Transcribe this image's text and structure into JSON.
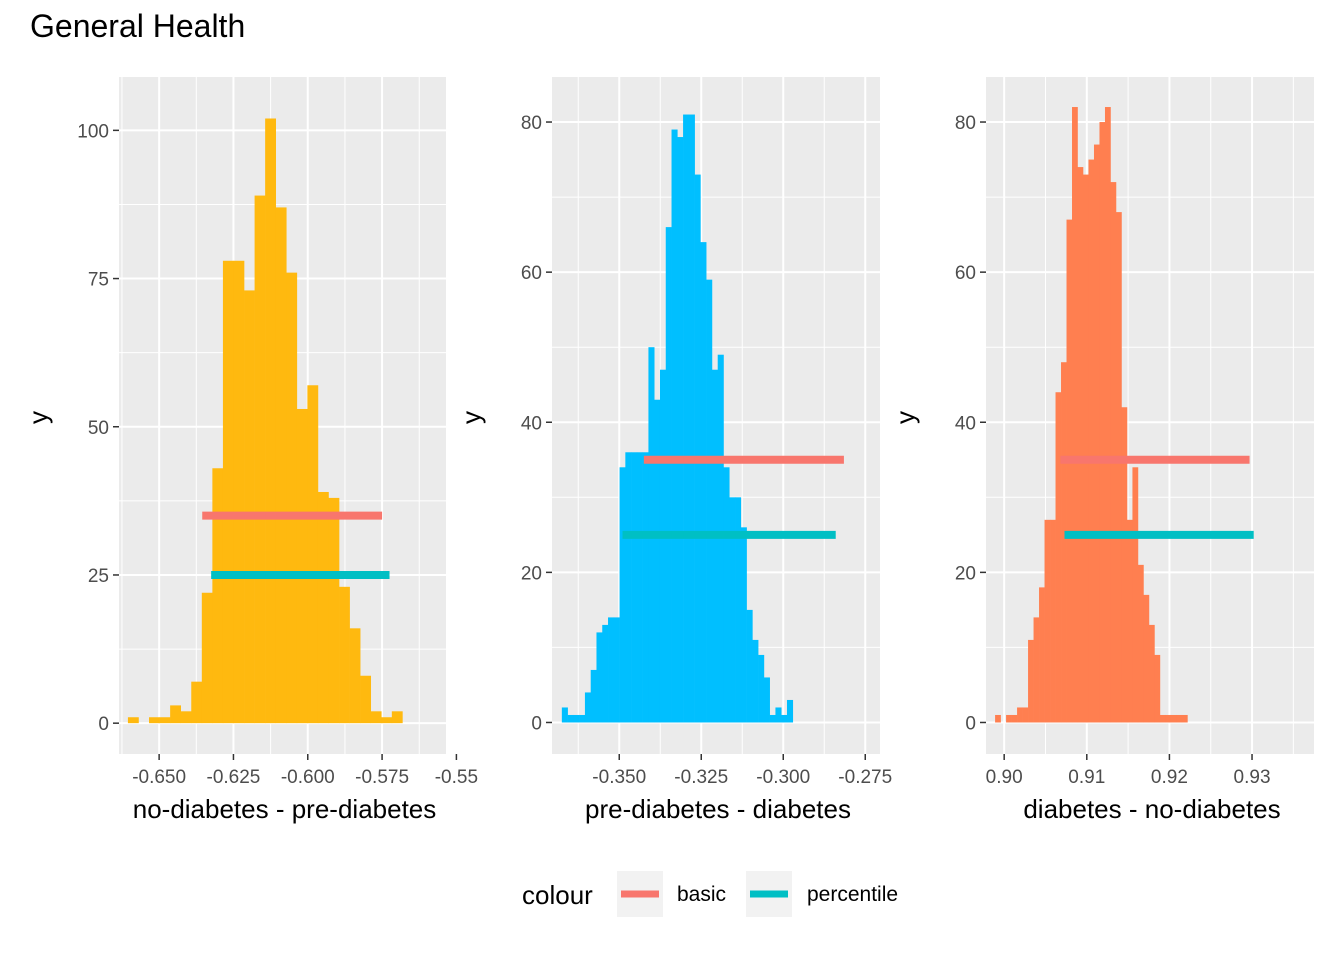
{
  "title": "General Health",
  "colors": {
    "basic": "#F8766D",
    "percentile": "#00BFC4"
  },
  "legend": {
    "title": "colour",
    "items": [
      {
        "key": "basic",
        "label": "basic",
        "color": "#F8766D"
      },
      {
        "key": "percentile",
        "label": "percentile",
        "color": "#00BFC4"
      }
    ]
  },
  "chart_data": [
    {
      "type": "bar",
      "subtype": "histogram",
      "xlabel": "no-diabetes - pre-diabetes",
      "ylabel": "y",
      "fill": "#FFB90F",
      "xlim": [
        -0.6635,
        -0.5535
      ],
      "ylim": [
        -5.2,
        109
      ],
      "xticks": [
        -0.65,
        -0.625,
        -0.6,
        -0.575,
        -0.55
      ],
      "xtick_labels": [
        "-0.650",
        "-0.625",
        "-0.600",
        "-0.575",
        "-0.55"
      ],
      "yticks": [
        0,
        25,
        50,
        75,
        100
      ],
      "ytick_labels": [
        "0",
        "25",
        "50",
        "75",
        "100"
      ],
      "bin_start": -0.6605,
      "bin_width": 0.003551,
      "counts": [
        1,
        0,
        1,
        1,
        3,
        2,
        7,
        22,
        43,
        78,
        78,
        73,
        89,
        102,
        87,
        76,
        53,
        57,
        39,
        38,
        23,
        16,
        8,
        2,
        1,
        2
      ],
      "intervals": [
        {
          "key": "basic",
          "lower": -0.6355,
          "upper": -0.575,
          "y": 35
        },
        {
          "key": "percentile",
          "lower": -0.6325,
          "upper": -0.5725,
          "y": 25
        }
      ]
    },
    {
      "type": "bar",
      "subtype": "histogram",
      "xlabel": "pre-diabetes - diabetes",
      "ylabel": "y",
      "fill": "#00BFFF",
      "xlim": [
        -0.3705,
        -0.2705
      ],
      "ylim": [
        -4.2,
        86
      ],
      "xticks": [
        -0.35,
        -0.325,
        -0.3,
        -0.275
      ],
      "xtick_labels": [
        "-0.350",
        "-0.325",
        "-0.300",
        "-0.275"
      ],
      "yticks": [
        0,
        20,
        40,
        60,
        80
      ],
      "ytick_labels": [
        "0",
        "20",
        "40",
        "60",
        "80"
      ],
      "bin_start": -0.3675,
      "bin_width": 0.00176,
      "counts": [
        2,
        1,
        1,
        1,
        4,
        7,
        12,
        13,
        14,
        14,
        34,
        36,
        36,
        36,
        36,
        50,
        43,
        47,
        66,
        79,
        78,
        81,
        81,
        73,
        64,
        59,
        47,
        49,
        34,
        30,
        30,
        26,
        15,
        11,
        9,
        6,
        1,
        2,
        1,
        3
      ],
      "intervals": [
        {
          "key": "basic",
          "lower": -0.3425,
          "upper": -0.2815,
          "y": 35
        },
        {
          "key": "percentile",
          "lower": -0.349,
          "upper": -0.284,
          "y": 25
        }
      ]
    },
    {
      "type": "bar",
      "subtype": "histogram",
      "xlabel": "diabetes - no-diabetes",
      "ylabel": "y",
      "fill": "#FF7F50",
      "xlim": [
        0.8978,
        0.9375
      ],
      "ylim": [
        -4.2,
        86
      ],
      "xticks": [
        0.9,
        0.91,
        0.92,
        0.93
      ],
      "xtick_labels": [
        "0.90",
        "0.91",
        "0.92",
        "0.93"
      ],
      "yticks": [
        0,
        20,
        40,
        60,
        80
      ],
      "ytick_labels": [
        "0",
        "20",
        "40",
        "60",
        "80"
      ],
      "bin_start": 0.8989,
      "bin_width": 0.000665,
      "counts": [
        1,
        0,
        1,
        1,
        2,
        2,
        11,
        14,
        18,
        27,
        27,
        44,
        48,
        67,
        82,
        74,
        73,
        75,
        77,
        80,
        82,
        72,
        68,
        42,
        27,
        34,
        21,
        17,
        13,
        9,
        1,
        1,
        1,
        1,
        1
      ],
      "intervals": [
        {
          "key": "basic",
          "lower": 0.9068,
          "upper": 0.9297,
          "y": 35
        },
        {
          "key": "percentile",
          "lower": 0.9073,
          "upper": 0.9302,
          "y": 25
        }
      ]
    }
  ]
}
